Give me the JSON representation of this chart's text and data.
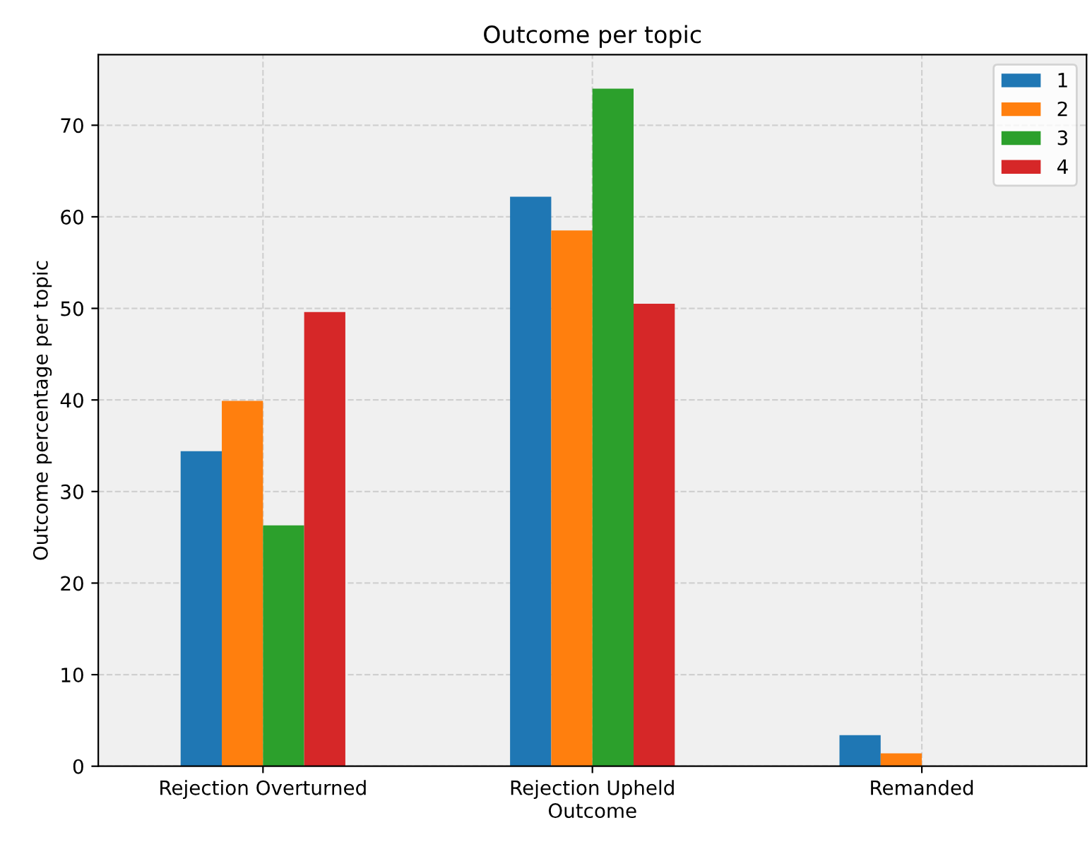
{
  "chart_data": {
    "type": "bar",
    "title": "Outcome per topic",
    "xlabel": "Outcome",
    "ylabel": "Outcome percentage per topic",
    "categories": [
      "Rejection Overturned",
      "Rejection Upheld",
      "Remanded"
    ],
    "series": [
      {
        "name": "1",
        "color": "#1f77b4",
        "values": [
          34.4,
          62.2,
          3.4
        ]
      },
      {
        "name": "2",
        "color": "#ff7f0e",
        "values": [
          39.9,
          58.5,
          1.4
        ]
      },
      {
        "name": "3",
        "color": "#2ca02c",
        "values": [
          26.3,
          74.0,
          0
        ]
      },
      {
        "name": "4",
        "color": "#d62728",
        "values": [
          49.6,
          50.5,
          0
        ]
      }
    ],
    "ylim": [
      0,
      77.7
    ],
    "yticks": [
      0,
      10,
      20,
      30,
      40,
      50,
      60,
      70
    ],
    "grid": true,
    "legend": "top right"
  }
}
